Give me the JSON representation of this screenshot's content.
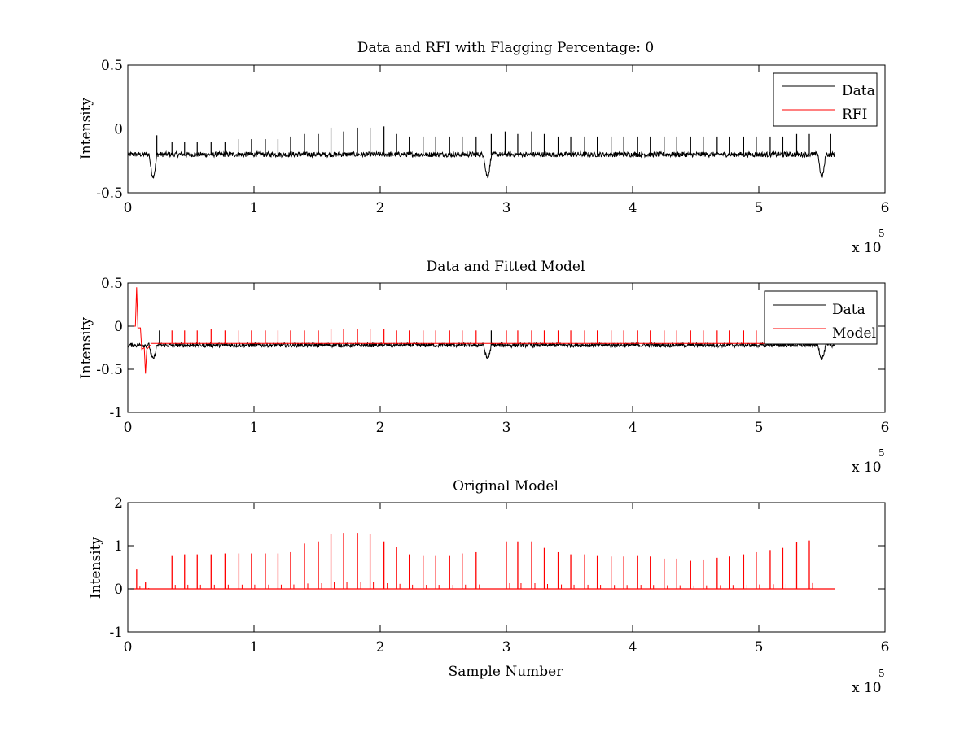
{
  "chart_data": [
    {
      "type": "line",
      "title": "Data and RFI with Flagging Percentage: 0",
      "xlabel": "",
      "ylabel": "Intensity",
      "xlim": [
        0,
        6
      ],
      "ylim": [
        -0.5,
        0.5
      ],
      "xticks": [
        0,
        1,
        2,
        3,
        4,
        5,
        6
      ],
      "yticks": [
        -0.5,
        0,
        0.5
      ],
      "xtick_labels": [
        "0",
        "1",
        "2",
        "3",
        "4",
        "5",
        "6"
      ],
      "ytick_labels": [
        "-0.5",
        "0",
        "0.5"
      ],
      "x_multiplier": "x 10",
      "x_exponent": "5",
      "legend": {
        "position": "top-right",
        "entries": [
          "Data",
          "RFI"
        ]
      },
      "series": [
        {
          "name": "Data",
          "color": "#000000",
          "kind": "trace",
          "x_range": [
            0,
            5.6
          ],
          "baseline": -0.2,
          "noise": 0.02,
          "dips": [
            {
              "x": 0.2,
              "depth": -0.37
            },
            {
              "x": 2.85,
              "depth": -0.37
            },
            {
              "x": 5.5,
              "depth": -0.37
            }
          ],
          "spike_x": [
            0.23,
            0.35,
            0.45,
            0.55,
            0.66,
            0.77,
            0.88,
            0.98,
            1.09,
            1.19,
            1.29,
            1.4,
            1.51,
            1.61,
            1.71,
            1.82,
            1.92,
            2.03,
            2.13,
            2.23,
            2.34,
            2.44,
            2.55,
            2.65,
            2.76,
            2.88,
            2.99,
            3.09,
            3.2,
            3.3,
            3.41,
            3.51,
            3.62,
            3.72,
            3.83,
            3.93,
            4.04,
            4.14,
            4.25,
            4.35,
            4.46,
            4.56,
            4.67,
            4.77,
            4.88,
            4.98,
            5.09,
            5.19,
            5.3,
            5.4,
            5.57
          ],
          "spike_top": [
            -0.05,
            -0.1,
            -0.1,
            -0.1,
            -0.1,
            -0.1,
            -0.08,
            -0.08,
            -0.08,
            -0.08,
            -0.06,
            -0.04,
            -0.04,
            0.01,
            -0.02,
            0.01,
            0.01,
            0.02,
            -0.04,
            -0.06,
            -0.06,
            -0.06,
            -0.06,
            -0.06,
            -0.06,
            -0.04,
            -0.02,
            -0.04,
            -0.02,
            -0.04,
            -0.06,
            -0.06,
            -0.06,
            -0.06,
            -0.06,
            -0.06,
            -0.06,
            -0.06,
            -0.06,
            -0.06,
            -0.06,
            -0.06,
            -0.06,
            -0.06,
            -0.06,
            -0.06,
            -0.06,
            -0.06,
            -0.04,
            -0.04,
            -0.04
          ]
        },
        {
          "name": "RFI",
          "color": "#ff0000",
          "kind": "legend-only"
        }
      ]
    },
    {
      "type": "line",
      "title": "Data and Fitted Model",
      "xlabel": "",
      "ylabel": "Intensity",
      "xlim": [
        0,
        6
      ],
      "ylim": [
        -1,
        0.5
      ],
      "xticks": [
        0,
        1,
        2,
        3,
        4,
        5,
        6
      ],
      "yticks": [
        -1,
        -0.5,
        0,
        0.5
      ],
      "xtick_labels": [
        "0",
        "1",
        "2",
        "3",
        "4",
        "5",
        "6"
      ],
      "ytick_labels": [
        "-1",
        "-0.5",
        "0",
        "0.5"
      ],
      "x_multiplier": "x 10",
      "x_exponent": "5",
      "legend": {
        "position": "top-right",
        "entries": [
          "Data",
          "Model"
        ]
      },
      "series": [
        {
          "name": "Data",
          "color": "#000000",
          "kind": "trace",
          "x_range": [
            0,
            5.6
          ],
          "baseline": -0.22,
          "noise": 0.025,
          "dips": [
            {
              "x": 0.2,
              "depth": -0.38
            },
            {
              "x": 2.85,
              "depth": -0.37
            },
            {
              "x": 5.5,
              "depth": -0.37
            }
          ],
          "spike_x": [
            0.25,
            2.88,
            5.57
          ],
          "spike_top": [
            -0.05,
            -0.05,
            -0.2
          ]
        },
        {
          "name": "Model",
          "color": "#ff0000",
          "kind": "model",
          "x_range": [
            0,
            5.05
          ],
          "baseline": -0.2,
          "early": [
            [
              0,
              0
            ],
            [
              0.06,
              0
            ],
            [
              0.07,
              0.45
            ],
            [
              0.08,
              -0.02
            ],
            [
              0.1,
              -0.02
            ],
            [
              0.11,
              -0.27
            ],
            [
              0.13,
              -0.25
            ],
            [
              0.14,
              -0.55
            ],
            [
              0.15,
              -0.27
            ],
            [
              0.18,
              -0.22
            ]
          ],
          "spike_x": [
            0.35,
            0.45,
            0.55,
            0.66,
            0.77,
            0.88,
            0.98,
            1.09,
            1.19,
            1.29,
            1.4,
            1.51,
            1.61,
            1.71,
            1.82,
            1.92,
            2.03,
            2.13,
            2.23,
            2.34,
            2.44,
            2.55,
            2.65,
            2.76,
            3.0,
            3.09,
            3.2,
            3.3,
            3.41,
            3.51,
            3.62,
            3.72,
            3.83,
            3.93,
            4.04,
            4.14,
            4.25,
            4.35,
            4.46,
            4.56,
            4.67,
            4.77,
            4.88,
            4.98
          ],
          "spike_top": [
            -0.05,
            -0.05,
            -0.05,
            -0.03,
            -0.05,
            -0.05,
            -0.05,
            -0.05,
            -0.05,
            -0.05,
            -0.05,
            -0.05,
            -0.03,
            -0.03,
            -0.03,
            -0.03,
            -0.03,
            -0.05,
            -0.05,
            -0.05,
            -0.05,
            -0.05,
            -0.05,
            -0.05,
            -0.05,
            -0.05,
            -0.05,
            -0.05,
            -0.05,
            -0.05,
            -0.05,
            -0.05,
            -0.05,
            -0.05,
            -0.05,
            -0.05,
            -0.05,
            -0.05,
            -0.05,
            -0.05,
            -0.05,
            -0.05,
            -0.05,
            -0.05
          ]
        }
      ]
    },
    {
      "type": "line",
      "title": "Original Model",
      "xlabel": "Sample Number",
      "ylabel": "Intensity",
      "xlim": [
        0,
        6
      ],
      "ylim": [
        -1,
        2
      ],
      "xticks": [
        0,
        1,
        2,
        3,
        4,
        5,
        6
      ],
      "yticks": [
        -1,
        0,
        1,
        2
      ],
      "xtick_labels": [
        "0",
        "1",
        "2",
        "3",
        "4",
        "5",
        "6"
      ],
      "ytick_labels": [
        "-1",
        "0",
        "1",
        "2"
      ],
      "x_multiplier": "x 10",
      "x_exponent": "5",
      "legend": null,
      "series": [
        {
          "name": "Original Model",
          "color": "#ff0000",
          "kind": "spikes",
          "x_range": [
            0.02,
            5.6
          ],
          "baseline": 0,
          "spike_x": [
            0.07,
            0.14,
            0.35,
            0.45,
            0.55,
            0.66,
            0.77,
            0.88,
            0.98,
            1.09,
            1.19,
            1.29,
            1.4,
            1.51,
            1.61,
            1.71,
            1.82,
            1.92,
            2.03,
            2.13,
            2.23,
            2.34,
            2.44,
            2.55,
            2.65,
            2.76,
            3.0,
            3.09,
            3.2,
            3.3,
            3.41,
            3.51,
            3.62,
            3.72,
            3.83,
            3.93,
            4.04,
            4.14,
            4.25,
            4.35,
            4.46,
            4.56,
            4.67,
            4.77,
            4.88,
            4.98,
            5.09,
            5.19,
            5.3,
            5.4
          ],
          "spike_top": [
            0.45,
            0.15,
            0.78,
            0.8,
            0.8,
            0.8,
            0.82,
            0.82,
            0.82,
            0.82,
            0.82,
            0.85,
            1.05,
            1.1,
            1.27,
            1.3,
            1.3,
            1.28,
            1.1,
            0.97,
            0.8,
            0.78,
            0.78,
            0.78,
            0.82,
            0.85,
            1.1,
            1.1,
            1.1,
            0.95,
            0.85,
            0.8,
            0.8,
            0.78,
            0.75,
            0.75,
            0.78,
            0.75,
            0.7,
            0.7,
            0.65,
            0.68,
            0.72,
            0.75,
            0.8,
            0.85,
            0.9,
            0.95,
            1.08,
            1.12
          ]
        }
      ]
    }
  ]
}
